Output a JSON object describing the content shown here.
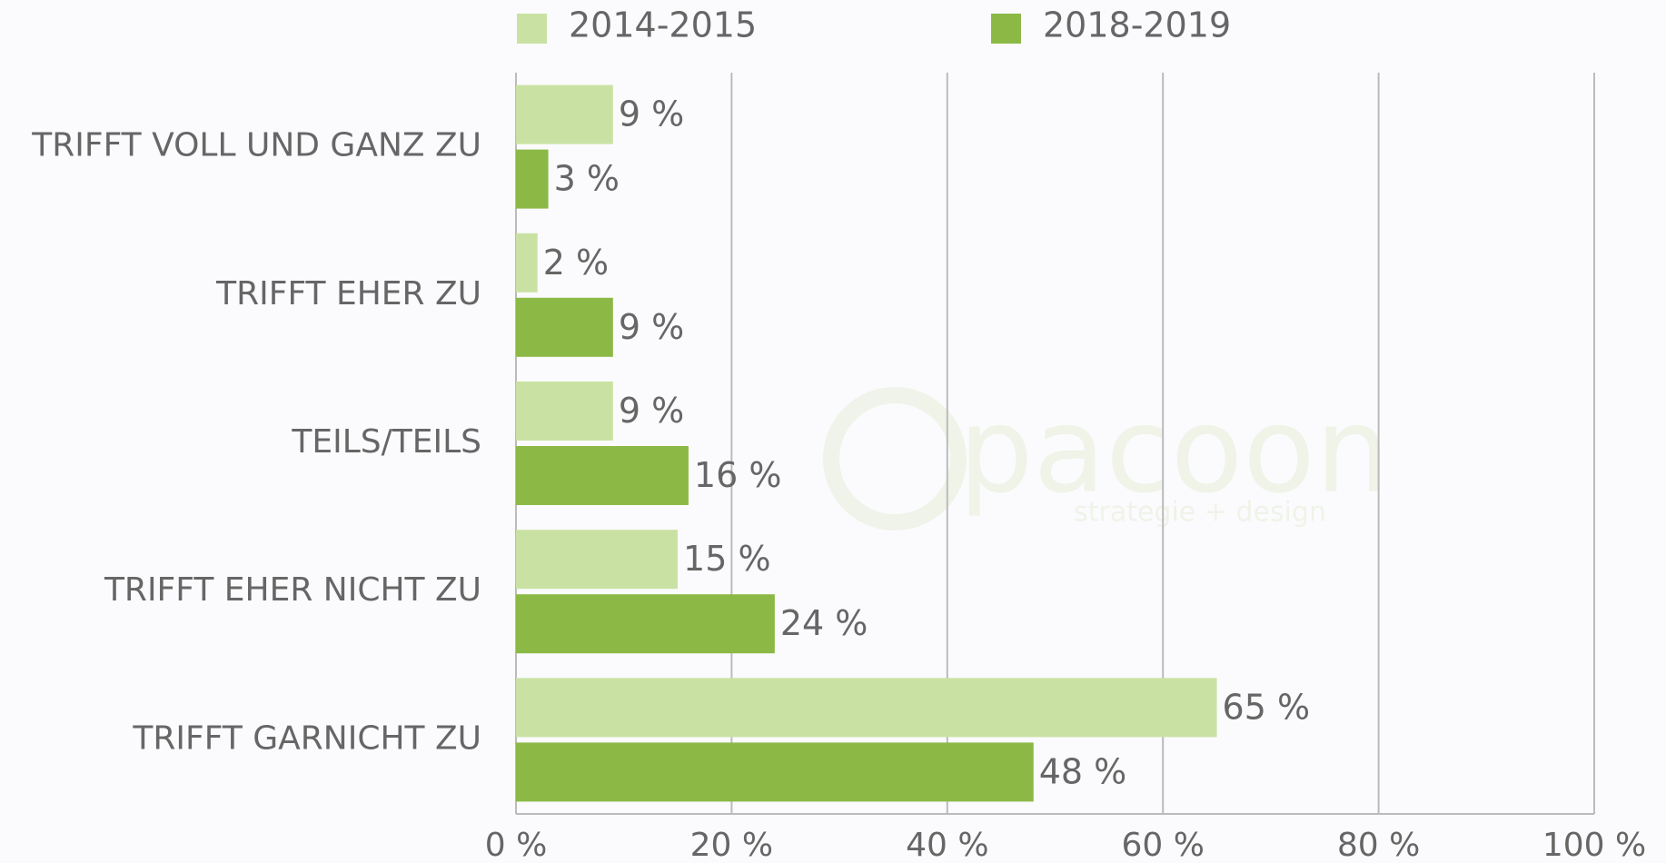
{
  "chart_data": {
    "type": "hbar",
    "categories": [
      "TRIFFT VOLL UND GANZ ZU",
      "TRIFFT EHER ZU",
      "TEILS/TEILS",
      "TRIFFT EHER NICHT ZU",
      "TRIFFT GARNICHT ZU"
    ],
    "series": [
      {
        "name": "2014-2015",
        "color": "#c9e2a3",
        "values": [
          9,
          2,
          9,
          15,
          65
        ],
        "value_labels": [
          "9 %",
          "2 %",
          "9 %",
          "15 %",
          "65 %"
        ]
      },
      {
        "name": "2018-2019",
        "color": "#8cb946",
        "values": [
          3,
          9,
          16,
          24,
          48
        ],
        "value_labels": [
          "3 %",
          "9 %",
          "16 %",
          "24 %",
          "48 %"
        ]
      }
    ],
    "xlim": [
      0,
      100
    ],
    "xticks": [
      {
        "value": 0,
        "label": "0 %"
      },
      {
        "value": 20,
        "label": "20 %"
      },
      {
        "value": 40,
        "label": "40 %"
      },
      {
        "value": 60,
        "label": "60 %"
      },
      {
        "value": 80,
        "label": "80 %"
      },
      {
        "value": 100,
        "label": "100 %"
      }
    ],
    "grid": true,
    "legend": "top",
    "watermark": {
      "name": "pacoon",
      "tagline": "strategie + design"
    }
  }
}
